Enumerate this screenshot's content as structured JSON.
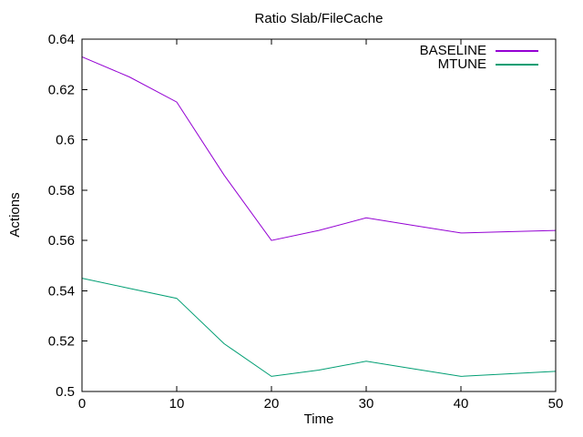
{
  "page": {
    "background": "#ffffff"
  },
  "chart_data": {
    "type": "line",
    "title": "Ratio Slab/FileCache",
    "xlabel": "Time",
    "ylabel": "Actions",
    "xlim": [
      0,
      50
    ],
    "ylim": [
      0.5,
      0.64
    ],
    "xticks": [
      0,
      10,
      20,
      30,
      40,
      50
    ],
    "xtick_labels": [
      "0",
      "10",
      "20",
      "30",
      "40",
      "50"
    ],
    "yticks": [
      0.5,
      0.52,
      0.54,
      0.56,
      0.58,
      0.6,
      0.62,
      0.64
    ],
    "ytick_labels": [
      "0.5",
      "0.52",
      "0.54",
      "0.56",
      "0.58",
      "0.6",
      "0.62",
      "0.64"
    ],
    "grid": false,
    "legend_position": "inside-top-right",
    "axis_color": "#000000",
    "text_color": "#000000",
    "x": [
      0,
      5,
      10,
      15,
      20,
      25,
      30,
      35,
      40,
      45,
      50
    ],
    "series": [
      {
        "name": "BASELINE",
        "color": "#9400D3",
        "values": [
          0.633,
          0.625,
          0.615,
          0.586,
          0.56,
          0.564,
          0.569,
          0.566,
          0.563,
          0.5635,
          0.564
        ]
      },
      {
        "name": "MTUNE",
        "color": "#009E73",
        "values": [
          0.545,
          0.541,
          0.537,
          0.519,
          0.506,
          0.5085,
          0.512,
          0.509,
          0.506,
          0.507,
          0.508
        ]
      }
    ]
  }
}
